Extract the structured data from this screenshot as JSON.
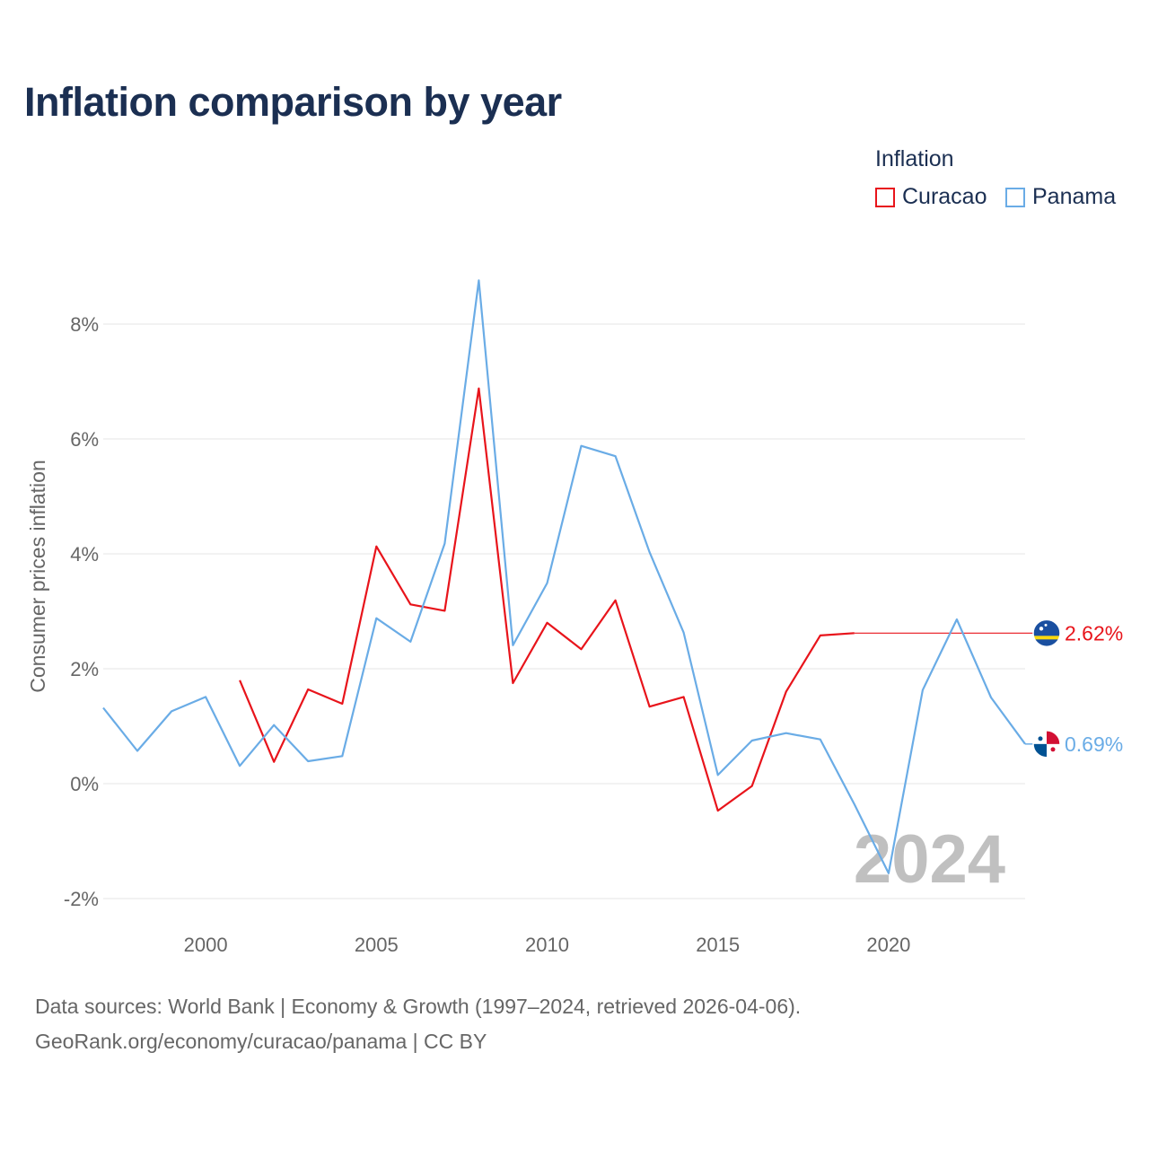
{
  "page": {
    "title": "Inflation comparison by year",
    "footer_line1": "Data sources: World Bank | Economy & Growth (1997–2024, retrieved 2026-04-06).",
    "footer_line2": "GeoRank.org/economy/curacao/panama | CC BY"
  },
  "legend": {
    "title": "Inflation",
    "items": [
      {
        "label": "Curacao",
        "color": "#e8141b"
      },
      {
        "label": "Panama",
        "color": "#6aace6"
      }
    ]
  },
  "chart_data": {
    "type": "line",
    "title": "Inflation comparison by year",
    "xlabel": "",
    "ylabel": "Consumer prices inflation",
    "xlim": [
      1997,
      2024
    ],
    "ylim": [
      -2,
      9
    ],
    "x_ticks": [
      2000,
      2005,
      2010,
      2015,
      2020
    ],
    "y_ticks": [
      -2,
      0,
      2,
      4,
      6,
      8
    ],
    "y_tick_format": "%",
    "grid": true,
    "legend_position": "top-right",
    "year_stamp": "2024",
    "series": [
      {
        "name": "Curacao",
        "color": "#e8141b",
        "flag_icon": "curacao-flag-icon",
        "end_label": "2.62%",
        "end_value": 2.62,
        "points": [
          [
            2001,
            1.8
          ],
          [
            2002,
            0.38
          ],
          [
            2003,
            1.64
          ],
          [
            2004,
            1.39
          ],
          [
            2005,
            4.13
          ],
          [
            2006,
            3.12
          ],
          [
            2007,
            3.01
          ],
          [
            2008,
            6.88
          ],
          [
            2009,
            1.75
          ],
          [
            2010,
            2.8
          ],
          [
            2011,
            2.34
          ],
          [
            2012,
            3.19
          ],
          [
            2013,
            1.34
          ],
          [
            2014,
            1.51
          ],
          [
            2015,
            -0.47
          ],
          [
            2016,
            -0.04
          ],
          [
            2017,
            1.6
          ],
          [
            2018,
            2.58
          ],
          [
            2019,
            2.62
          ]
        ]
      },
      {
        "name": "Panama",
        "color": "#6aace6",
        "flag_icon": "panama-flag-icon",
        "end_label": "0.69%",
        "end_value": 0.69,
        "points": [
          [
            1997,
            1.32
          ],
          [
            1998,
            0.57
          ],
          [
            1999,
            1.26
          ],
          [
            2000,
            1.51
          ],
          [
            2001,
            0.31
          ],
          [
            2002,
            1.02
          ],
          [
            2003,
            0.39
          ],
          [
            2004,
            0.48
          ],
          [
            2005,
            2.88
          ],
          [
            2006,
            2.47
          ],
          [
            2007,
            4.18
          ],
          [
            2008,
            8.76
          ],
          [
            2009,
            2.41
          ],
          [
            2010,
            3.49
          ],
          [
            2011,
            5.88
          ],
          [
            2012,
            5.7
          ],
          [
            2013,
            4.03
          ],
          [
            2014,
            2.63
          ],
          [
            2015,
            0.15
          ],
          [
            2016,
            0.75
          ],
          [
            2017,
            0.88
          ],
          [
            2018,
            0.77
          ],
          [
            2019,
            -0.36
          ],
          [
            2020,
            -1.56
          ],
          [
            2021,
            1.63
          ],
          [
            2022,
            2.86
          ],
          [
            2023,
            1.5
          ],
          [
            2024,
            0.69
          ]
        ]
      }
    ]
  }
}
